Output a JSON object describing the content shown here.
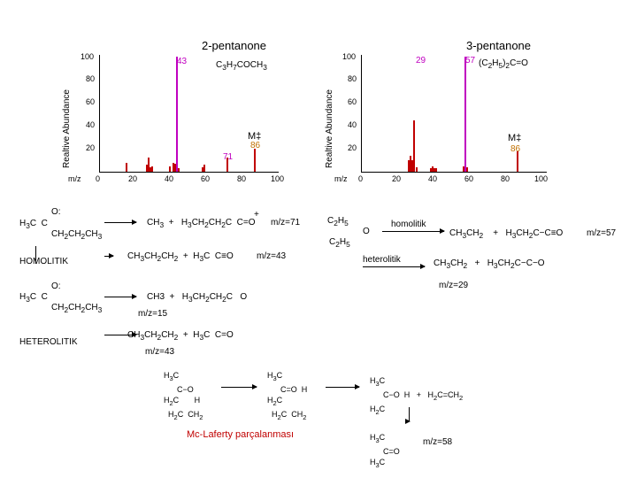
{
  "left_chart": {
    "title": "2-pentanone",
    "formula": "C3H7COCH3",
    "ylabel": "Realtive Abundance",
    "xlabel": "m/z",
    "yticks": [
      "100",
      "80",
      "60",
      "40",
      "20"
    ],
    "xticks": [
      "0",
      "20",
      "40",
      "60",
      "80",
      "100"
    ],
    "peak_labels": [
      "43",
      "71",
      "M‡",
      "86"
    ]
  },
  "right_chart": {
    "title": "3-pentanone",
    "formula": "(C2H5)2C=O",
    "ylabel": "Realtive Abundance",
    "xlabel": "m/z",
    "yticks": [
      "100",
      "80",
      "60",
      "40",
      "20"
    ],
    "xticks": [
      "0",
      "20",
      "40",
      "60",
      "80",
      "100"
    ],
    "peak_labels": [
      "29",
      "57",
      "M‡",
      "86"
    ]
  },
  "chart_data": [
    {
      "type": "bar",
      "title": "2-pentanone",
      "ylabel": "Realtive Abundance",
      "xlabel": "m/z",
      "xlim": [
        0,
        100
      ],
      "ylim": [
        0,
        100
      ],
      "x": [
        15,
        26,
        27,
        28,
        29,
        39,
        41,
        42,
        43,
        44,
        57,
        58,
        71,
        86
      ],
      "values": [
        8,
        6,
        12,
        4,
        5,
        5,
        8,
        7,
        100,
        3,
        4,
        6,
        12,
        20
      ]
    },
    {
      "type": "bar",
      "title": "3-pentanone",
      "ylabel": "Realtive Abundance",
      "xlabel": "m/z",
      "xlim": [
        0,
        100
      ],
      "ylim": [
        0,
        100
      ],
      "x": [
        26,
        27,
        28,
        29,
        30,
        38,
        39,
        40,
        41,
        56,
        57,
        58,
        86
      ],
      "values": [
        10,
        14,
        10,
        45,
        4,
        3,
        5,
        3,
        3,
        5,
        100,
        4,
        18
      ]
    }
  ],
  "scheme": {
    "left": {
      "r1_eq": "m/z=71",
      "homolitik": "HOMOLITIK",
      "r2_eq": "m/z=43",
      "r3_eq": "m/z=15",
      "heterolitik": "HETEROLITIK",
      "r4_eq": "m/z=43"
    },
    "right": {
      "homolitik": "homolitik",
      "heterolitik": "heterolitik",
      "r1_eq": "m/z=57",
      "r2_eq": "m/z=29"
    },
    "mclafferty": {
      "title": "Mc-Laferty parçalanması",
      "product_eq": "m/z=58"
    }
  }
}
